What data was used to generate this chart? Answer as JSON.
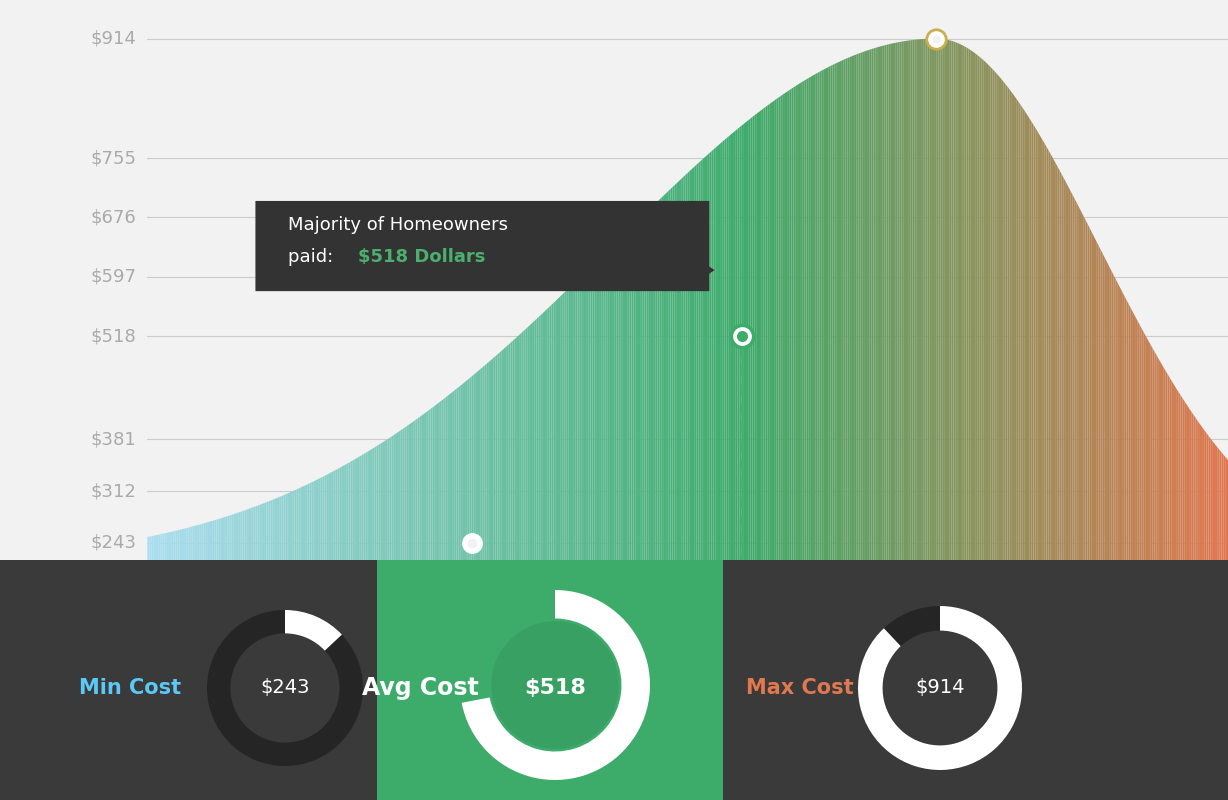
{
  "bg_color": "#f2f2f2",
  "ytick_values": [
    914,
    755,
    676,
    597,
    518,
    381,
    312,
    243
  ],
  "min_val": 243,
  "avg_val": 518,
  "max_val": 914,
  "green_color": "#3dab6a",
  "orange_color": "#e07850",
  "blue_light": "#a8dff0",
  "dark_bg": "#3a3a3a",
  "avg_bg": "#3dab6a",
  "min_label_color": "#5bc8f5",
  "max_label_color": "#e07850",
  "tooltip_bg": "#333333",
  "tooltip_text_color": "#ffffff",
  "tooltip_highlight_color": "#4caf6e",
  "dashed_line_color": "#4caf6e",
  "max_marker_color": "#c8b050",
  "gray_line": "#cccccc",
  "gray_text": "#aaaaaa",
  "white": "#ffffff",
  "min_cost_label": "Min Cost",
  "avg_cost_label": "Avg Cost",
  "max_cost_label": "Max Cost",
  "min_cost_value": "$243",
  "avg_cost_value": "$518",
  "max_cost_value": "$914",
  "tooltip_line1": "Majority of Homeowners",
  "tooltip_line2_plain": "paid: ",
  "tooltip_line2_colored": "$518 Dollars"
}
